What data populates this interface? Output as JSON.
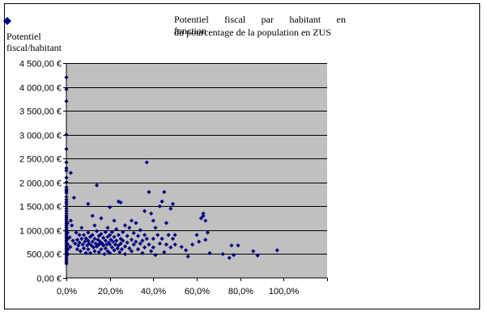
{
  "chart_data": {
    "type": "scatter",
    "title_line1": [
      "Potentiel",
      "fiscal",
      "par",
      "habitant",
      "en"
    ],
    "title_overlap": "fonction",
    "title_line2": "du pourcentage de la population en ZUS",
    "ylabel_line1": "Potentiel",
    "ylabel_line2": "fiscal/habitant",
    "xlabel": "",
    "xlim": [
      0,
      1.2
    ],
    "ylim": [
      0,
      4500
    ],
    "x_ticks": [
      {
        "value": 0,
        "label": "0,0%"
      },
      {
        "value": 0.2,
        "label": "20,0%"
      },
      {
        "value": 0.4,
        "label": "40,0%"
      },
      {
        "value": 0.6,
        "label": "60,0%"
      },
      {
        "value": 0.8,
        "label": "80,0%"
      },
      {
        "value": 1.0,
        "label": "100,0%"
      }
    ],
    "y_ticks": [
      {
        "value": 0,
        "label": "0,00 €"
      },
      {
        "value": 500,
        "label": "500,00 €"
      },
      {
        "value": 1000,
        "label": "1 000,00 €"
      },
      {
        "value": 1500,
        "label": "1 500,00 €"
      },
      {
        "value": 2000,
        "label": "2 000,00 €"
      },
      {
        "value": 2500,
        "label": "2 500,00 €"
      },
      {
        "value": 3000,
        "label": "3 000,00 €"
      },
      {
        "value": 3500,
        "label": "3 500,00 €"
      },
      {
        "value": 4000,
        "label": "4 000,00 €"
      },
      {
        "value": 4500,
        "label": "4 500,00 €"
      }
    ],
    "grid": true,
    "colors": {
      "plot_bg": "#c0c0c0",
      "marker": "#000080",
      "grid": "#000000"
    },
    "points": [
      [
        0,
        4200
      ],
      [
        0,
        3950
      ],
      [
        0,
        3700
      ],
      [
        0,
        3000
      ],
      [
        0,
        2700
      ],
      [
        0,
        2420
      ],
      [
        0,
        2300
      ],
      [
        0,
        2250
      ],
      [
        0,
        2100
      ],
      [
        0,
        2000
      ],
      [
        0,
        1900
      ],
      [
        0,
        1850
      ],
      [
        0,
        1820
      ],
      [
        0,
        1780
      ],
      [
        0,
        1700
      ],
      [
        0,
        1640
      ],
      [
        0,
        1590
      ],
      [
        0,
        1550
      ],
      [
        0,
        1500
      ],
      [
        0,
        1450
      ],
      [
        0,
        1400
      ],
      [
        0,
        1350
      ],
      [
        0,
        1300
      ],
      [
        0,
        1260
      ],
      [
        0,
        1220
      ],
      [
        0,
        1180
      ],
      [
        0,
        1140
      ],
      [
        0,
        1100
      ],
      [
        0,
        1060
      ],
      [
        0,
        1020
      ],
      [
        0,
        980
      ],
      [
        0,
        940
      ],
      [
        0,
        900
      ],
      [
        0,
        860
      ],
      [
        0,
        820
      ],
      [
        0,
        780
      ],
      [
        0,
        740
      ],
      [
        0,
        700
      ],
      [
        0,
        660
      ],
      [
        0,
        620
      ],
      [
        0,
        580
      ],
      [
        0,
        540
      ],
      [
        0,
        500
      ],
      [
        0,
        460
      ],
      [
        0,
        420
      ],
      [
        0,
        380
      ],
      [
        0,
        340
      ],
      [
        0,
        300
      ],
      [
        0.005,
        1150
      ],
      [
        0.005,
        950
      ],
      [
        0.005,
        820
      ],
      [
        0.006,
        700
      ],
      [
        0.007,
        600
      ],
      [
        0.006,
        500
      ],
      [
        0.02,
        2200
      ],
      [
        0.02,
        1200
      ],
      [
        0.015,
        850
      ],
      [
        0.018,
        650
      ],
      [
        0.025,
        1100
      ],
      [
        0.03,
        780
      ],
      [
        0.035,
        1680
      ],
      [
        0.04,
        720
      ],
      [
        0.045,
        950
      ],
      [
        0.05,
        600
      ],
      [
        0.05,
        800
      ],
      [
        0.055,
        680
      ],
      [
        0.06,
        900
      ],
      [
        0.06,
        740
      ],
      [
        0.065,
        560
      ],
      [
        0.07,
        1050
      ],
      [
        0.07,
        820
      ],
      [
        0.075,
        700
      ],
      [
        0.08,
        620
      ],
      [
        0.08,
        900
      ],
      [
        0.085,
        760
      ],
      [
        0.09,
        520
      ],
      [
        0.09,
        830
      ],
      [
        0.095,
        680
      ],
      [
        0.1,
        1550
      ],
      [
        0.1,
        950
      ],
      [
        0.1,
        780
      ],
      [
        0.1,
        600
      ],
      [
        0.105,
        720
      ],
      [
        0.11,
        860
      ],
      [
        0.11,
        520
      ],
      [
        0.115,
        680
      ],
      [
        0.12,
        1300
      ],
      [
        0.12,
        900
      ],
      [
        0.12,
        760
      ],
      [
        0.125,
        640
      ],
      [
        0.13,
        1100
      ],
      [
        0.13,
        820
      ],
      [
        0.13,
        560
      ],
      [
        0.135,
        720
      ],
      [
        0.14,
        1940
      ],
      [
        0.14,
        980
      ],
      [
        0.14,
        660
      ],
      [
        0.145,
        800
      ],
      [
        0.15,
        880
      ],
      [
        0.15,
        700
      ],
      [
        0.15,
        540
      ],
      [
        0.155,
        760
      ],
      [
        0.16,
        1250
      ],
      [
        0.16,
        920
      ],
      [
        0.16,
        600
      ],
      [
        0.165,
        720
      ],
      [
        0.17,
        840
      ],
      [
        0.17,
        680
      ],
      [
        0.175,
        500
      ],
      [
        0.18,
        960
      ],
      [
        0.18,
        780
      ],
      [
        0.18,
        620
      ],
      [
        0.185,
        700
      ],
      [
        0.19,
        1050
      ],
      [
        0.19,
        860
      ],
      [
        0.19,
        560
      ],
      [
        0.195,
        740
      ],
      [
        0.2,
        1480
      ],
      [
        0.2,
        900
      ],
      [
        0.2,
        700
      ],
      [
        0.2,
        520
      ],
      [
        0.205,
        800
      ],
      [
        0.21,
        960
      ],
      [
        0.21,
        640
      ],
      [
        0.215,
        760
      ],
      [
        0.22,
        1200
      ],
      [
        0.22,
        860
      ],
      [
        0.22,
        580
      ],
      [
        0.225,
        700
      ],
      [
        0.23,
        1020
      ],
      [
        0.23,
        780
      ],
      [
        0.235,
        620
      ],
      [
        0.24,
        1600
      ],
      [
        0.24,
        900
      ],
      [
        0.24,
        680
      ],
      [
        0.245,
        540
      ],
      [
        0.25,
        1580
      ],
      [
        0.25,
        820
      ],
      [
        0.25,
        720
      ],
      [
        0.255,
        600
      ],
      [
        0.26,
        960
      ],
      [
        0.26,
        780
      ],
      [
        0.27,
        1100
      ],
      [
        0.27,
        660
      ],
      [
        0.27,
        500
      ],
      [
        0.28,
        880
      ],
      [
        0.28,
        740
      ],
      [
        0.29,
        1050
      ],
      [
        0.29,
        620
      ],
      [
        0.3,
        1200
      ],
      [
        0.3,
        800
      ],
      [
        0.3,
        560
      ],
      [
        0.31,
        940
      ],
      [
        0.31,
        700
      ],
      [
        0.32,
        1150
      ],
      [
        0.32,
        760
      ],
      [
        0.33,
        880
      ],
      [
        0.33,
        600
      ],
      [
        0.34,
        1000
      ],
      [
        0.34,
        720
      ],
      [
        0.35,
        780
      ],
      [
        0.35,
        520
      ],
      [
        0.36,
        1400
      ],
      [
        0.36,
        900
      ],
      [
        0.36,
        640
      ],
      [
        0.37,
        2420
      ],
      [
        0.37,
        820
      ],
      [
        0.38,
        1800
      ],
      [
        0.38,
        700
      ],
      [
        0.39,
        1350
      ],
      [
        0.39,
        560
      ],
      [
        0.4,
        1200
      ],
      [
        0.4,
        820
      ],
      [
        0.4,
        640
      ],
      [
        0.41,
        1050
      ],
      [
        0.41,
        480
      ],
      [
        0.42,
        900
      ],
      [
        0.43,
        1500
      ],
      [
        0.43,
        720
      ],
      [
        0.44,
        1600
      ],
      [
        0.44,
        820
      ],
      [
        0.45,
        1800
      ],
      [
        0.45,
        540
      ],
      [
        0.46,
        1150
      ],
      [
        0.46,
        700
      ],
      [
        0.47,
        900
      ],
      [
        0.48,
        1450
      ],
      [
        0.48,
        640
      ],
      [
        0.49,
        1550
      ],
      [
        0.49,
        820
      ],
      [
        0.5,
        900
      ],
      [
        0.5,
        700
      ],
      [
        0.53,
        650
      ],
      [
        0.55,
        580
      ],
      [
        0.56,
        450
      ],
      [
        0.58,
        700
      ],
      [
        0.6,
        900
      ],
      [
        0.61,
        760
      ],
      [
        0.62,
        1250
      ],
      [
        0.63,
        1350
      ],
      [
        0.63,
        1300
      ],
      [
        0.64,
        1200
      ],
      [
        0.64,
        800
      ],
      [
        0.65,
        950
      ],
      [
        0.66,
        520
      ],
      [
        0.72,
        500
      ],
      [
        0.75,
        420
      ],
      [
        0.76,
        680
      ],
      [
        0.77,
        480
      ],
      [
        0.79,
        680
      ],
      [
        0.86,
        560
      ],
      [
        0.88,
        470
      ],
      [
        0.97,
        580
      ]
    ]
  }
}
